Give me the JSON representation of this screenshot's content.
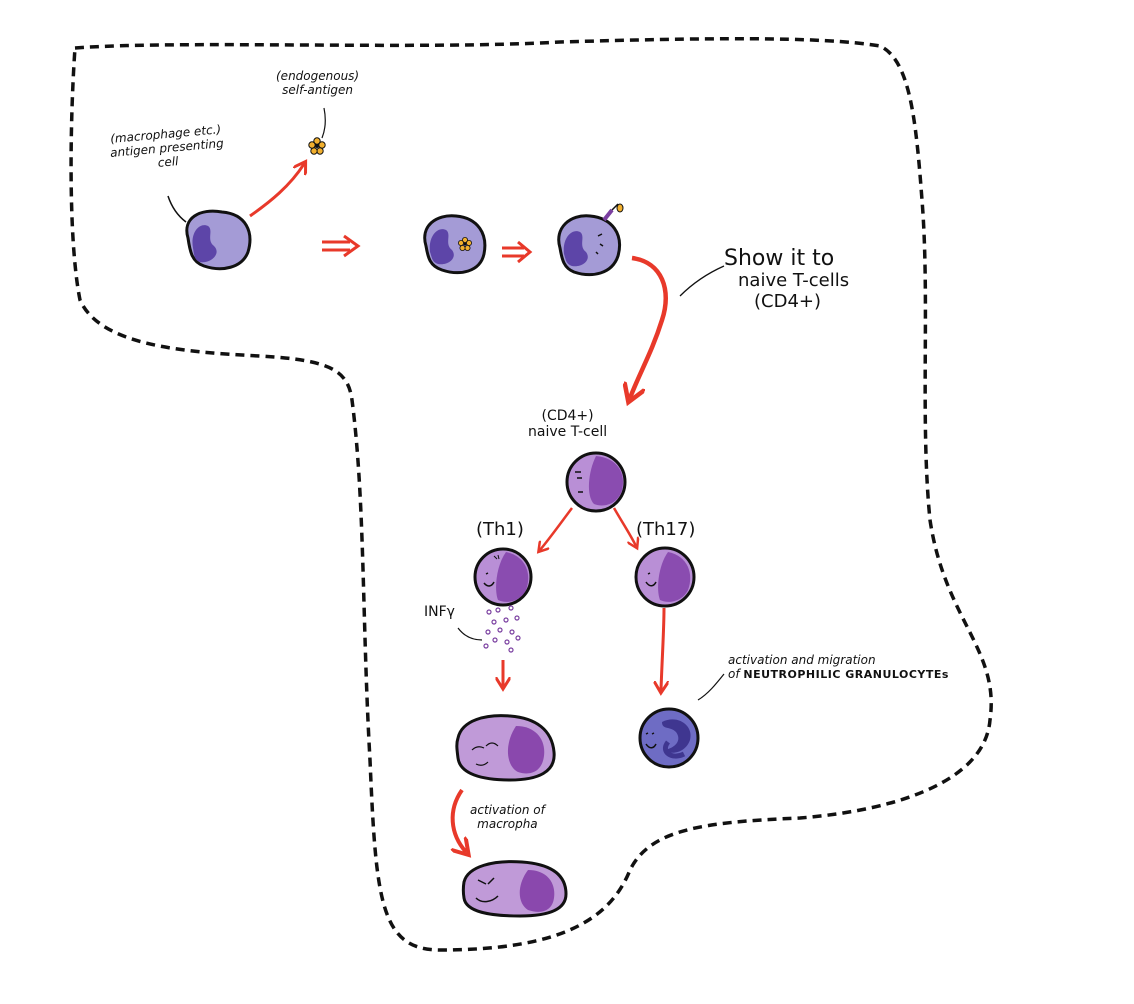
{
  "labels": {
    "apc_line1": "(macrophage etc.)",
    "apc_line2": "antigen presenting",
    "apc_line3": "cell",
    "self_antigen_line1": "(endogenous)",
    "self_antigen_line2": "self-antigen",
    "show_line1": "Show it to",
    "show_line2": "naive T-cells",
    "show_line3": "(CD4+)",
    "naive_line1": "(CD4+)",
    "naive_line2": "naive T-cell",
    "th1": "(Th1)",
    "th17": "(Th17)",
    "infg": "INFγ",
    "neutro_line1": "activation and migration",
    "neutro_line2_prefix": "of ",
    "neutro_line2_caps": "NEUTROPHILIC GRANULOCYTEs",
    "macro_line1": "activation of",
    "macro_line2": "macropha"
  },
  "icons": [
    "antigen-presenting-cell",
    "self-antigen",
    "naive-t-cell",
    "th1-cell",
    "th17-cell",
    "macrophage",
    "activated-macrophage",
    "neutrophil"
  ],
  "colors": {
    "arrow": "#e8392a",
    "apc_fill": "#a49bd6",
    "apc_nucleus": "#5d45a8",
    "tcell_fill": "#b98fd6",
    "tcell_nucleus": "#8a4cb0",
    "macro_fill": "#c09ad8",
    "macro_nucleus": "#8a48ad",
    "neutro_fill": "#6e6cc4",
    "neutro_nucleus": "#3f3690",
    "antigen": "#f2b02e",
    "outline": "#111111"
  }
}
